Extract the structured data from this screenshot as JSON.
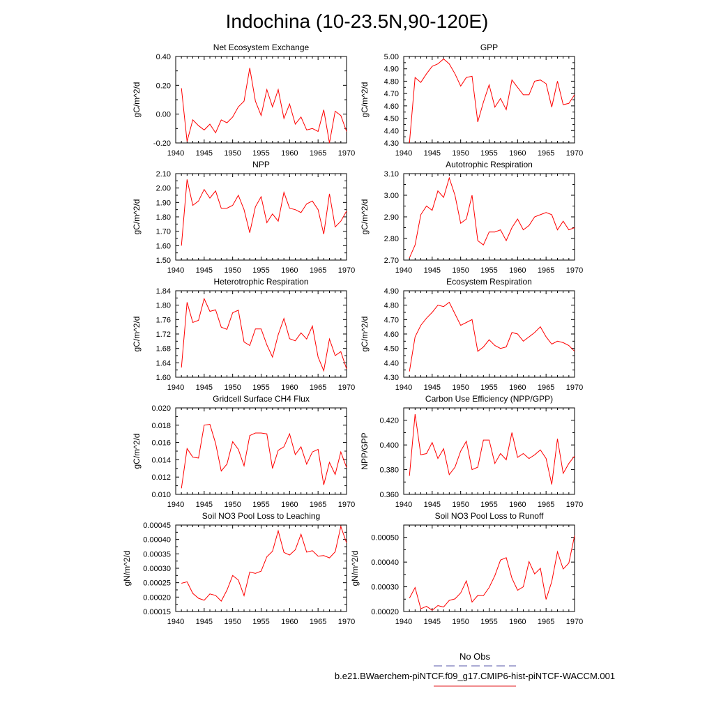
{
  "figure": {
    "title": "Indochina (10-23.5N,90-120E)",
    "legend": [
      {
        "label": "No Obs",
        "color": "#5555aa",
        "dash": true
      },
      {
        "label": "b.e21.BWaerchem-piNTCF.f09_g17.CMIP6-hist-piNTCF-WACCM.001",
        "color": "#e31a1c",
        "dash": false
      }
    ]
  },
  "chart_data": [
    {
      "type": "line",
      "title": "Net Ecosystem Exchange",
      "ylabel": "gC/m^2/d",
      "xlim": [
        1940,
        1970
      ],
      "ylim": [
        -0.2,
        0.4
      ],
      "yticks": [
        "-0.20",
        "0.00",
        "0.20",
        "0.40"
      ],
      "xticks": [
        "1940",
        "1945",
        "1950",
        "1955",
        "1960",
        "1965",
        "1970"
      ],
      "series": [
        {
          "color": "#ff0000",
          "x": [
            1941,
            1942,
            1943,
            1944,
            1945,
            1946,
            1947,
            1948,
            1949,
            1950,
            1951,
            1952,
            1953,
            1954,
            1955,
            1956,
            1957,
            1958,
            1959,
            1960,
            1961,
            1962,
            1963,
            1964,
            1965,
            1966,
            1967,
            1968,
            1969,
            1970
          ],
          "y": [
            0.18,
            -0.19,
            -0.04,
            -0.08,
            -0.11,
            -0.07,
            -0.13,
            -0.04,
            -0.06,
            -0.02,
            0.05,
            0.09,
            0.32,
            0.09,
            -0.01,
            0.17,
            0.05,
            0.17,
            -0.03,
            0.07,
            -0.07,
            -0.02,
            -0.11,
            -0.1,
            -0.12,
            0.03,
            -0.2,
            0.02,
            -0.01,
            -0.12
          ]
        }
      ]
    },
    {
      "type": "line",
      "title": "GPP",
      "ylabel": "gC/m^2/d",
      "xlim": [
        1940,
        1970
      ],
      "ylim": [
        4.3,
        5.0
      ],
      "yticks": [
        "4.30",
        "4.40",
        "4.50",
        "4.60",
        "4.70",
        "4.80",
        "4.90",
        "5.00"
      ],
      "xticks": [
        "1940",
        "1945",
        "1950",
        "1955",
        "1960",
        "1965",
        "1970"
      ],
      "series": [
        {
          "color": "#ff0000",
          "x": [
            1941,
            1942,
            1943,
            1944,
            1945,
            1946,
            1947,
            1948,
            1949,
            1950,
            1951,
            1952,
            1953,
            1954,
            1955,
            1956,
            1957,
            1958,
            1959,
            1960,
            1961,
            1962,
            1963,
            1964,
            1965,
            1966,
            1967,
            1968,
            1969,
            1970
          ],
          "y": [
            4.3,
            4.83,
            4.79,
            4.86,
            4.92,
            4.94,
            4.98,
            4.94,
            4.86,
            4.76,
            4.83,
            4.84,
            4.47,
            4.63,
            4.77,
            4.59,
            4.66,
            4.57,
            4.81,
            4.75,
            4.69,
            4.69,
            4.8,
            4.81,
            4.78,
            4.59,
            4.8,
            4.61,
            4.62,
            4.69
          ]
        }
      ]
    },
    {
      "type": "line",
      "title": "NPP",
      "ylabel": "gC/m^2/d",
      "xlim": [
        1940,
        1970
      ],
      "ylim": [
        1.5,
        2.1
      ],
      "yticks": [
        "1.50",
        "1.60",
        "1.70",
        "1.80",
        "1.90",
        "2.00",
        "2.10"
      ],
      "xticks": [
        "1940",
        "1945",
        "1950",
        "1955",
        "1960",
        "1965",
        "1970"
      ],
      "series": [
        {
          "color": "#ff0000",
          "x": [
            1941,
            1942,
            1943,
            1944,
            1945,
            1946,
            1947,
            1948,
            1949,
            1950,
            1951,
            1952,
            1953,
            1954,
            1955,
            1956,
            1957,
            1958,
            1959,
            1960,
            1961,
            1962,
            1963,
            1964,
            1965,
            1966,
            1967,
            1968,
            1969,
            1970
          ],
          "y": [
            1.6,
            2.06,
            1.88,
            1.91,
            1.99,
            1.93,
            1.98,
            1.86,
            1.86,
            1.88,
            1.95,
            1.85,
            1.69,
            1.87,
            1.94,
            1.76,
            1.82,
            1.77,
            1.97,
            1.86,
            1.85,
            1.83,
            1.89,
            1.91,
            1.85,
            1.68,
            1.96,
            1.73,
            1.77,
            1.84
          ]
        }
      ]
    },
    {
      "type": "line",
      "title": "Autotrophic Respiration",
      "ylabel": "gC/m^2/d",
      "xlim": [
        1940,
        1970
      ],
      "ylim": [
        2.7,
        3.1
      ],
      "yticks": [
        "2.70",
        "2.80",
        "2.90",
        "3.00",
        "3.10"
      ],
      "xticks": [
        "1940",
        "1945",
        "1950",
        "1955",
        "1960",
        "1965",
        "1970"
      ],
      "series": [
        {
          "color": "#ff0000",
          "x": [
            1941,
            1942,
            1943,
            1944,
            1945,
            1946,
            1947,
            1948,
            1949,
            1950,
            1951,
            1952,
            1953,
            1954,
            1955,
            1956,
            1957,
            1958,
            1959,
            1960,
            1961,
            1962,
            1963,
            1964,
            1965,
            1966,
            1967,
            1968,
            1969,
            1970
          ],
          "y": [
            2.71,
            2.77,
            2.91,
            2.95,
            2.93,
            3.02,
            2.99,
            3.08,
            3.0,
            2.87,
            2.89,
            3.0,
            2.79,
            2.77,
            2.83,
            2.83,
            2.84,
            2.79,
            2.85,
            2.89,
            2.84,
            2.86,
            2.9,
            2.91,
            2.92,
            2.91,
            2.84,
            2.88,
            2.84,
            2.85
          ]
        }
      ]
    },
    {
      "type": "line",
      "title": "Heterotrophic Respiration",
      "ylabel": "gC/m^2/d",
      "xlim": [
        1940,
        1970
      ],
      "ylim": [
        1.6,
        1.84
      ],
      "yticks": [
        "1.60",
        "1.64",
        "1.68",
        "1.72",
        "1.76",
        "1.80",
        "1.84"
      ],
      "xticks": [
        "1940",
        "1945",
        "1950",
        "1955",
        "1960",
        "1965",
        "1970"
      ],
      "series": [
        {
          "color": "#ff0000",
          "x": [
            1941,
            1942,
            1943,
            1944,
            1945,
            1946,
            1947,
            1948,
            1949,
            1950,
            1951,
            1952,
            1953,
            1954,
            1955,
            1956,
            1957,
            1958,
            1959,
            1960,
            1961,
            1962,
            1963,
            1964,
            1965,
            1966,
            1967,
            1968,
            1969,
            1970
          ],
          "y": [
            1.627,
            1.808,
            1.752,
            1.758,
            1.818,
            1.783,
            1.787,
            1.739,
            1.733,
            1.779,
            1.786,
            1.698,
            1.688,
            1.734,
            1.734,
            1.69,
            1.656,
            1.718,
            1.763,
            1.707,
            1.701,
            1.723,
            1.706,
            1.742,
            1.656,
            1.618,
            1.706,
            1.66,
            1.671,
            1.623
          ]
        }
      ]
    },
    {
      "type": "line",
      "title": "Ecosystem Respiration",
      "ylabel": "gC/m^2/d",
      "xlim": [
        1940,
        1970
      ],
      "ylim": [
        4.3,
        4.9
      ],
      "yticks": [
        "4.30",
        "4.40",
        "4.50",
        "4.60",
        "4.70",
        "4.80",
        "4.90"
      ],
      "xticks": [
        "1940",
        "1945",
        "1950",
        "1955",
        "1960",
        "1965",
        "1970"
      ],
      "series": [
        {
          "color": "#ff0000",
          "x": [
            1941,
            1942,
            1943,
            1944,
            1945,
            1946,
            1947,
            1948,
            1949,
            1950,
            1951,
            1952,
            1953,
            1954,
            1955,
            1956,
            1957,
            1958,
            1959,
            1960,
            1961,
            1962,
            1963,
            1964,
            1965,
            1966,
            1967,
            1968,
            1969,
            1970
          ],
          "y": [
            4.34,
            4.58,
            4.66,
            4.71,
            4.75,
            4.8,
            4.79,
            4.82,
            4.74,
            4.66,
            4.68,
            4.7,
            4.48,
            4.51,
            4.56,
            4.52,
            4.5,
            4.51,
            4.61,
            4.6,
            4.55,
            4.58,
            4.61,
            4.65,
            4.58,
            4.53,
            4.55,
            4.54,
            4.52,
            4.48
          ]
        }
      ]
    },
    {
      "type": "line",
      "title": "Gridcell Surface CH4 Flux",
      "ylabel": "gC/m^2/d",
      "xlim": [
        1940,
        1970
      ],
      "ylim": [
        0.01,
        0.02
      ],
      "yticks": [
        "0.010",
        "0.012",
        "0.014",
        "0.016",
        "0.018",
        "0.020"
      ],
      "xticks": [
        "1940",
        "1945",
        "1950",
        "1955",
        "1960",
        "1965",
        "1970"
      ],
      "series": [
        {
          "color": "#ff0000",
          "x": [
            1941,
            1942,
            1943,
            1944,
            1945,
            1946,
            1947,
            1948,
            1949,
            1950,
            1951,
            1952,
            1953,
            1954,
            1955,
            1956,
            1957,
            1958,
            1959,
            1960,
            1961,
            1962,
            1963,
            1964,
            1965,
            1966,
            1967,
            1968,
            1969,
            1970
          ],
          "y": [
            0.0107,
            0.0153,
            0.0143,
            0.0142,
            0.018,
            0.0181,
            0.0159,
            0.0127,
            0.0135,
            0.0161,
            0.0152,
            0.0133,
            0.0168,
            0.0171,
            0.0171,
            0.017,
            0.013,
            0.0151,
            0.0155,
            0.017,
            0.0146,
            0.0155,
            0.0135,
            0.0149,
            0.0152,
            0.0111,
            0.0137,
            0.0123,
            0.0149,
            0.0131
          ]
        }
      ]
    },
    {
      "type": "line",
      "title": "Carbon Use Efficiency (NPP/GPP)",
      "ylabel": "NPP/GPP",
      "xlim": [
        1940,
        1970
      ],
      "ylim": [
        0.36,
        0.43
      ],
      "yticks": [
        "0.360",
        "0.380",
        "0.400",
        "0.420"
      ],
      "xticks": [
        "1940",
        "1945",
        "1950",
        "1955",
        "1960",
        "1965",
        "1970"
      ],
      "series": [
        {
          "color": "#ff0000",
          "x": [
            1941,
            1942,
            1943,
            1944,
            1945,
            1946,
            1947,
            1948,
            1949,
            1950,
            1951,
            1952,
            1953,
            1954,
            1955,
            1956,
            1957,
            1958,
            1959,
            1960,
            1961,
            1962,
            1963,
            1964,
            1965,
            1966,
            1967,
            1968,
            1969,
            1970
          ],
          "y": [
            0.375,
            0.425,
            0.392,
            0.393,
            0.402,
            0.389,
            0.397,
            0.376,
            0.382,
            0.395,
            0.403,
            0.38,
            0.382,
            0.404,
            0.404,
            0.385,
            0.393,
            0.388,
            0.41,
            0.39,
            0.393,
            0.389,
            0.392,
            0.396,
            0.389,
            0.368,
            0.405,
            0.377,
            0.385,
            0.391
          ]
        }
      ]
    },
    {
      "type": "line",
      "title": "Soil NO3 Pool Loss to Leaching",
      "ylabel": "gN/m^2/d",
      "xlim": [
        1940,
        1970
      ],
      "ylim": [
        0.00015,
        0.00045
      ],
      "yticks": [
        "0.00015",
        "0.00020",
        "0.00025",
        "0.00030",
        "0.00035",
        "0.00040",
        "0.00045"
      ],
      "xticks": [
        "1940",
        "1945",
        "1950",
        "1955",
        "1960",
        "1965",
        "1970"
      ],
      "series": [
        {
          "color": "#ff0000",
          "x": [
            1941,
            1942,
            1943,
            1944,
            1945,
            1946,
            1947,
            1948,
            1949,
            1950,
            1951,
            1952,
            1953,
            1954,
            1955,
            1956,
            1957,
            1958,
            1959,
            1960,
            1961,
            1962,
            1963,
            1964,
            1965,
            1966,
            1967,
            1968,
            1969,
            1970
          ],
          "y": [
            0.000248,
            0.000253,
            0.000213,
            0.000196,
            0.000189,
            0.000211,
            0.000206,
            0.000186,
            0.000224,
            0.000275,
            0.000259,
            0.000205,
            0.000287,
            0.000282,
            0.00029,
            0.00034,
            0.000359,
            0.00043,
            0.000355,
            0.000346,
            0.000364,
            0.000418,
            0.000356,
            0.000361,
            0.000342,
            0.000344,
            0.000336,
            0.000357,
            0.000445,
            0.000388
          ]
        }
      ]
    },
    {
      "type": "line",
      "title": "Soil NO3 Pool Loss to Runoff",
      "ylabel": "gN/m^2/d",
      "xlim": [
        1940,
        1970
      ],
      "ylim": [
        0.0002,
        0.00055
      ],
      "yticks": [
        "0.00020",
        "0.00030",
        "0.00040",
        "0.00050"
      ],
      "xticks": [
        "1940",
        "1945",
        "1950",
        "1955",
        "1960",
        "1965",
        "1970"
      ],
      "series": [
        {
          "color": "#ff0000",
          "x": [
            1941,
            1942,
            1943,
            1944,
            1945,
            1946,
            1947,
            1948,
            1949,
            1950,
            1951,
            1952,
            1953,
            1954,
            1955,
            1956,
            1957,
            1958,
            1959,
            1960,
            1961,
            1962,
            1963,
            1964,
            1965,
            1966,
            1967,
            1968,
            1969,
            1970
          ],
          "y": [
            0.000254,
            0.000297,
            0.000211,
            0.000221,
            0.000205,
            0.000224,
            0.000218,
            0.000245,
            0.000251,
            0.000275,
            0.000324,
            0.000238,
            0.000265,
            0.000264,
            0.000297,
            0.000345,
            0.000408,
            0.000418,
            0.000335,
            0.000286,
            0.0003,
            0.000402,
            0.000352,
            0.000375,
            0.000249,
            0.000321,
            0.000442,
            0.000372,
            0.000396,
            0.000507
          ]
        }
      ]
    }
  ]
}
